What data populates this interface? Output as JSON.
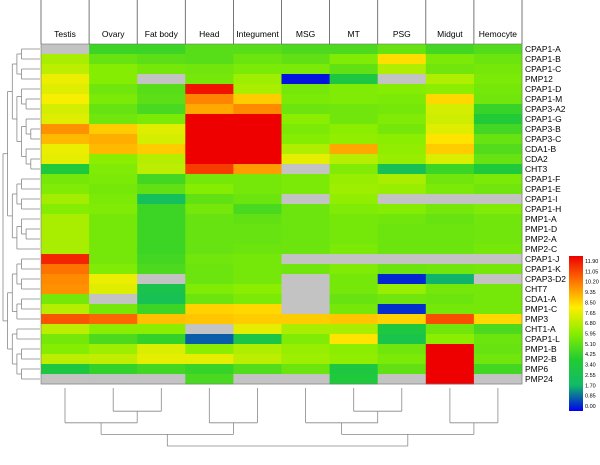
{
  "chart_data": {
    "type": "heatmap",
    "title": "",
    "columns": [
      "Testis",
      "Ovary",
      "Fat body",
      "Head",
      "Integument",
      "MSG",
      "MT",
      "PSG",
      "Midgut",
      "Hemocyte"
    ],
    "rows": [
      "CPAP1-A",
      "CPAP1-B",
      "CPAP1-C",
      "PMP12",
      "CPAP1-D",
      "CPAP1-M",
      "CPAP3-A2",
      "CPAP1-G",
      "CPAP3-B",
      "CPAP3-C",
      "CDA1-B",
      "CDA2",
      "CHT3",
      "CPAP1-F",
      "CPAP1-E",
      "CPAP1-I",
      "CPAP1-H",
      "PMP1-A",
      "PMP1-D",
      "PMP2-A",
      "PMP2-C",
      "CPAP1-J",
      "CPAP1-K",
      "CPAP3-D2",
      "CHT7",
      "CDA1-A",
      "PMP1-C",
      "PMP3",
      "CHT1-A",
      "CPAP1-L",
      "PMP1-B",
      "PMP2-B",
      "PMP6",
      "PMP24"
    ],
    "values": [
      [
        null,
        4.5,
        4.5,
        5.0,
        5.0,
        4.8,
        4.8,
        5.3,
        4.6,
        4.9
      ],
      [
        6.5,
        5.3,
        5.1,
        5.0,
        5.4,
        5.2,
        5.8,
        8.2,
        5.7,
        5.4
      ],
      [
        6.8,
        5.9,
        5.6,
        5.5,
        5.7,
        5.7,
        5.2,
        6.6,
        5.5,
        5.6
      ],
      [
        7.6,
        5.9,
        null,
        5.6,
        6.3,
        0.2,
        3.4,
        null,
        6.6,
        5.7
      ],
      [
        7.4,
        5.5,
        5.0,
        11.6,
        6.5,
        5.6,
        5.8,
        5.9,
        6.0,
        5.6
      ],
      [
        7.8,
        5.7,
        5.1,
        9.7,
        8.5,
        5.7,
        5.8,
        5.7,
        8.3,
        5.5
      ],
      [
        7.2,
        5.3,
        4.7,
        9.1,
        9.6,
        5.4,
        5.5,
        5.6,
        7.2,
        4.4
      ],
      [
        7.4,
        5.5,
        5.7,
        11.9,
        11.9,
        6.0,
        5.5,
        5.8,
        7.1,
        3.8
      ],
      [
        9.5,
        8.5,
        7.4,
        11.9,
        11.9,
        5.7,
        6.0,
        5.6,
        7.4,
        4.6
      ],
      [
        8.8,
        9.0,
        7.2,
        11.9,
        11.9,
        5.9,
        6.1,
        6.0,
        8.1,
        5.3
      ],
      [
        7.6,
        8.8,
        8.5,
        11.9,
        11.9,
        6.6,
        9.1,
        6.1,
        8.5,
        4.9
      ],
      [
        7.5,
        6.0,
        6.7,
        11.9,
        11.9,
        7.5,
        6.7,
        6.2,
        7.3,
        5.3
      ],
      [
        3.6,
        5.8,
        6.8,
        10.9,
        9.3,
        null,
        5.8,
        2.6,
        4.5,
        3.6
      ],
      [
        5.6,
        5.7,
        4.6,
        5.6,
        5.6,
        5.7,
        6.2,
        6.5,
        5.5,
        5.7
      ],
      [
        5.8,
        5.6,
        5.2,
        5.9,
        5.6,
        5.7,
        6.3,
        6.2,
        5.7,
        5.5
      ],
      [
        6.4,
        5.7,
        2.4,
        5.2,
        5.4,
        null,
        6.1,
        null,
        null,
        null
      ],
      [
        5.9,
        5.8,
        4.5,
        5.6,
        4.7,
        5.4,
        5.8,
        5.9,
        5.6,
        5.8
      ],
      [
        6.5,
        5.6,
        4.5,
        5.3,
        5.2,
        5.4,
        5.6,
        5.5,
        5.3,
        5.5
      ],
      [
        6.5,
        5.6,
        4.5,
        5.3,
        5.3,
        5.4,
        5.6,
        5.4,
        5.4,
        5.5
      ],
      [
        6.5,
        5.6,
        4.5,
        5.3,
        5.3,
        5.4,
        5.6,
        5.4,
        5.4,
        5.5
      ],
      [
        6.5,
        5.6,
        4.5,
        5.3,
        5.4,
        5.4,
        5.7,
        5.4,
        5.4,
        5.6
      ],
      [
        11.3,
        5.6,
        4.6,
        5.5,
        5.6,
        null,
        null,
        null,
        null,
        null
      ],
      [
        10.0,
        5.8,
        4.8,
        5.4,
        5.6,
        5.5,
        5.8,
        5.4,
        5.5,
        5.6
      ],
      [
        9.6,
        7.6,
        null,
        5.4,
        5.6,
        null,
        5.6,
        0.4,
        1.9,
        null
      ],
      [
        9.5,
        7.4,
        3.0,
        5.8,
        6.0,
        null,
        5.6,
        6.2,
        5.6,
        5.6
      ],
      [
        5.6,
        null,
        2.7,
        5.4,
        5.7,
        null,
        5.3,
        5.5,
        5.4,
        5.6
      ],
      [
        6.7,
        5.6,
        4.5,
        8.4,
        8.3,
        null,
        5.6,
        0.5,
        5.6,
        5.6
      ],
      [
        10.5,
        10.2,
        8.7,
        8.6,
        8.5,
        8.5,
        8.6,
        8.4,
        10.6,
        8.3
      ],
      [
        6.8,
        6.0,
        6.0,
        null,
        7.5,
        6.5,
        6.5,
        3.5,
        5.5,
        4.8
      ],
      [
        5.6,
        4.8,
        4.3,
        1.0,
        3.2,
        5.8,
        8.1,
        3.0,
        6.0,
        5.4
      ],
      [
        5.9,
        6.3,
        7.3,
        6.0,
        6.6,
        6.2,
        6.0,
        5.5,
        11.9,
        5.3
      ],
      [
        6.8,
        6.9,
        7.5,
        7.5,
        6.8,
        6.3,
        6.1,
        5.7,
        11.9,
        5.5
      ],
      [
        3.4,
        4.3,
        4.6,
        4.4,
        4.9,
        5.4,
        3.4,
        5.2,
        11.9,
        4.6
      ],
      [
        null,
        null,
        null,
        4.7,
        null,
        null,
        3.6,
        null,
        11.9,
        null
      ]
    ],
    "missing_color": "#c3c3c3",
    "scale": {
      "ticks": [
        "11.90",
        "11.05",
        "10.20",
        "9.35",
        "8.50",
        "7.65",
        "6.80",
        "5.95",
        "5.10",
        "4.25",
        "3.40",
        "2.55",
        "1.70",
        "0.85",
        "0.00"
      ],
      "min": 0.0,
      "max": 11.9,
      "colors": [
        "#ee0000",
        "#ff7700",
        "#ffee00",
        "#88ee00",
        "#22cc33",
        "#11bb66",
        "#0000ee"
      ]
    },
    "row_dendrogram": true,
    "column_dendrogram": true
  }
}
